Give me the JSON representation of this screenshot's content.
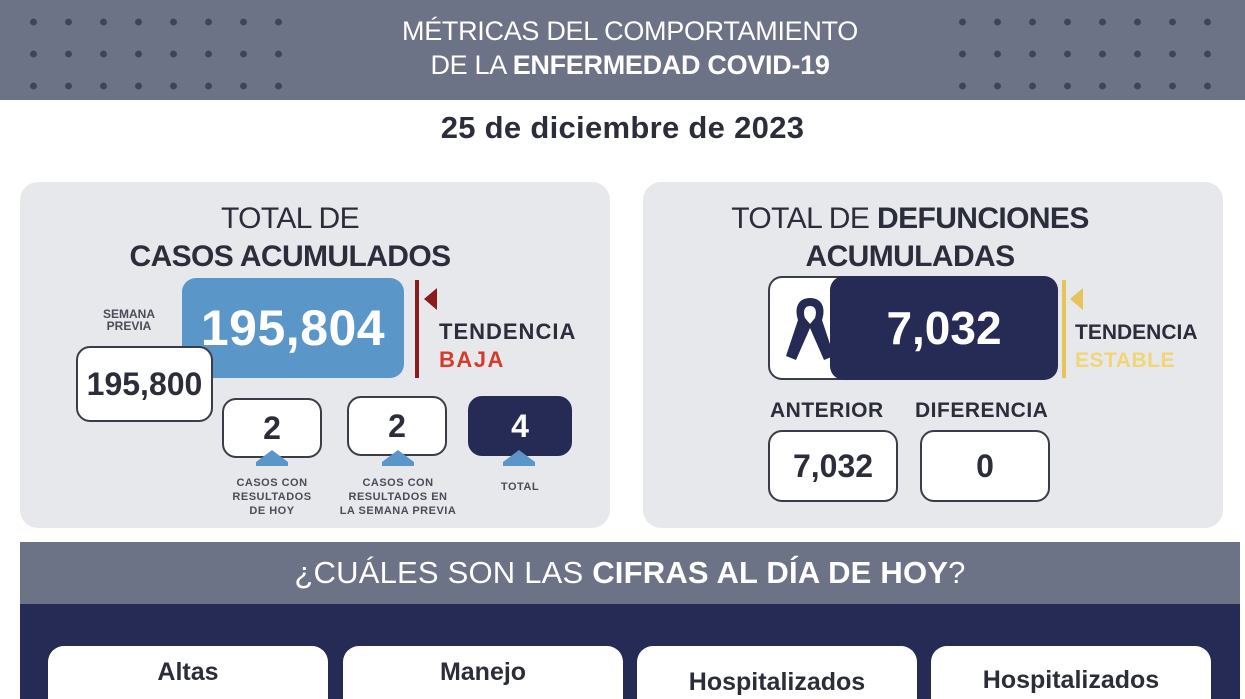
{
  "header": {
    "line1": "MÉTRICAS DEL COMPORTAMIENTO",
    "line2_prefix": "DE LA ",
    "line2_bold": "ENFERMEDAD COVID-19"
  },
  "date": "25 de diciembre de 2023",
  "cases": {
    "title_line1": "TOTAL DE",
    "title_line2": "CASOS ACUMULADOS",
    "total": "195,804",
    "previous_week_label_1": "SEMANA",
    "previous_week_label_2": "PREVIA",
    "previous_week_value": "195,800",
    "trend_label": "TENDENCIA",
    "trend_value": "BAJA",
    "trend_color": "#d63a2a",
    "today_value": "2",
    "today_caption": [
      "CASOS CON",
      "RESULTADOS",
      "DE HOY"
    ],
    "week_value": "2",
    "week_caption": [
      "CASOS  CON",
      "RESULTADOS  EN",
      "LA  SEMANA  PREVIA"
    ],
    "sum_value": "4",
    "sum_caption": "TOTAL"
  },
  "deaths": {
    "title_prefix": "TOTAL DE ",
    "title_bold": "DEFUNCIONES",
    "title_line2": "ACUMULADAS",
    "total": "7,032",
    "ribbon_icon": "mourning-ribbon-icon",
    "trend_label": "TENDENCIA",
    "trend_value": "ESTABLE",
    "trend_color": "#f2d574",
    "previous_label": "ANTERIOR",
    "previous_value": "7,032",
    "difference_label": "DIFERENCIA",
    "difference_value": "0"
  },
  "today": {
    "heading_prefix": "¿CUÁLES SON LAS ",
    "heading_bold": "CIFRAS AL DÍA DE HOY",
    "heading_suffix": "?",
    "cards": [
      "Altas",
      "Manejo",
      "Hospitalizados",
      "Hospitalizados"
    ]
  },
  "colors": {
    "banner": "#6d7386",
    "navy": "#262b55",
    "accent_blue": "#5b96c9",
    "panel_gray": "#e7e8ec"
  }
}
